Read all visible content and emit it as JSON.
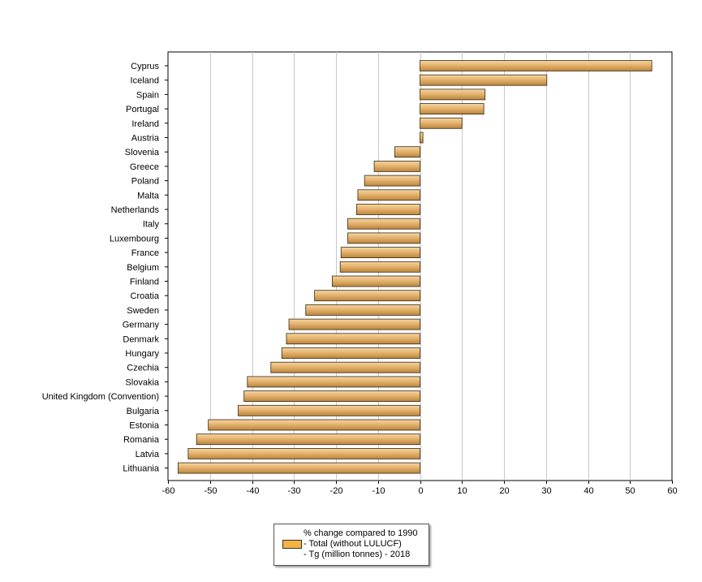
{
  "chart_data": {
    "type": "bar",
    "orientation": "horizontal",
    "categories": [
      "Cyprus",
      "Iceland",
      "Spain",
      "Portugal",
      "Ireland",
      "Austria",
      "Slovenia",
      "Greece",
      "Poland",
      "Malta",
      "Netherlands",
      "Italy",
      "Luxembourg",
      "France",
      "Belgium",
      "Finland",
      "Croatia",
      "Sweden",
      "Germany",
      "Denmark",
      "Hungary",
      "Czechia",
      "Slovakia",
      "United Kingdom (Convention)",
      "Bulgaria",
      "Estonia",
      "Romania",
      "Latvia",
      "Lithuania"
    ],
    "values": [
      55.2,
      30.2,
      15.5,
      15.2,
      10.0,
      0.7,
      -6.0,
      -10.9,
      -13.2,
      -14.8,
      -15.1,
      -17.2,
      -17.2,
      -18.8,
      -19.0,
      -20.9,
      -25.1,
      -27.2,
      -31.2,
      -31.8,
      -32.9,
      -35.5,
      -41.1,
      -41.9,
      -43.3,
      -50.4,
      -53.2,
      -55.2,
      -57.6
    ],
    "xlim": [
      -60,
      60
    ],
    "xticks": [
      -60,
      -50,
      -40,
      -30,
      -20,
      -10,
      0,
      10,
      20,
      30,
      40,
      50,
      60
    ],
    "grid": true,
    "bar_color": "#e6b36e",
    "bar_color_light": "#f4d6a4",
    "bar_color_dark": "#b9853e",
    "legend": {
      "placement": "bottom",
      "lines": [
        "% change compared to 1990",
        "- Total (without LULUCF)",
        "- Tg (million tonnes) - 2018"
      ],
      "swatch_color": "#f5b342"
    }
  }
}
